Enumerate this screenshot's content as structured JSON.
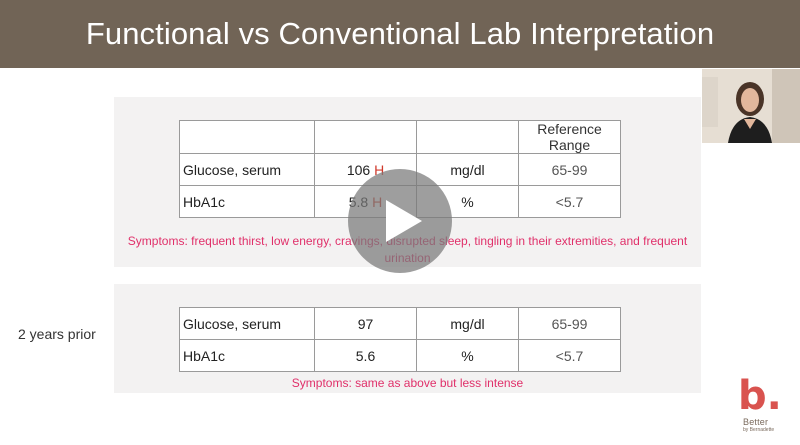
{
  "slide": {
    "title": "Functional vs Conventional Lab Interpretation",
    "prior_label": "2 years prior"
  },
  "current_panel": {
    "header": [
      "",
      "",
      "",
      "Reference Range"
    ],
    "rows": [
      {
        "test": "Glucose, serum",
        "value": "106",
        "flag": "H",
        "unit": "mg/dl",
        "range": "65-99"
      },
      {
        "test": "HbA1c",
        "value": "5.8",
        "flag": "H",
        "unit": "%",
        "range": "<5.7"
      }
    ],
    "symptoms": "Symptoms: frequent thirst, low energy, cravings, disrupted sleep, tingling in their extremities, and frequent urination"
  },
  "prior_panel": {
    "rows": [
      {
        "test": "Glucose, serum",
        "value": "97",
        "unit": "mg/dl",
        "range": "65-99"
      },
      {
        "test": "HbA1c",
        "value": "5.6",
        "unit": "%",
        "range": "<5.7"
      }
    ],
    "symptoms": "Symptoms: same as above but less intense"
  },
  "video": {
    "play_icon": "play-icon"
  },
  "logo": {
    "mark": "b",
    "dot": ".",
    "name": "Better",
    "byline": "by Bernadette"
  },
  "colors": {
    "title_bar": "#716456",
    "symptoms": "#e0306a",
    "flag": "#d0392b",
    "panel_bg": "#f3f2f2"
  }
}
